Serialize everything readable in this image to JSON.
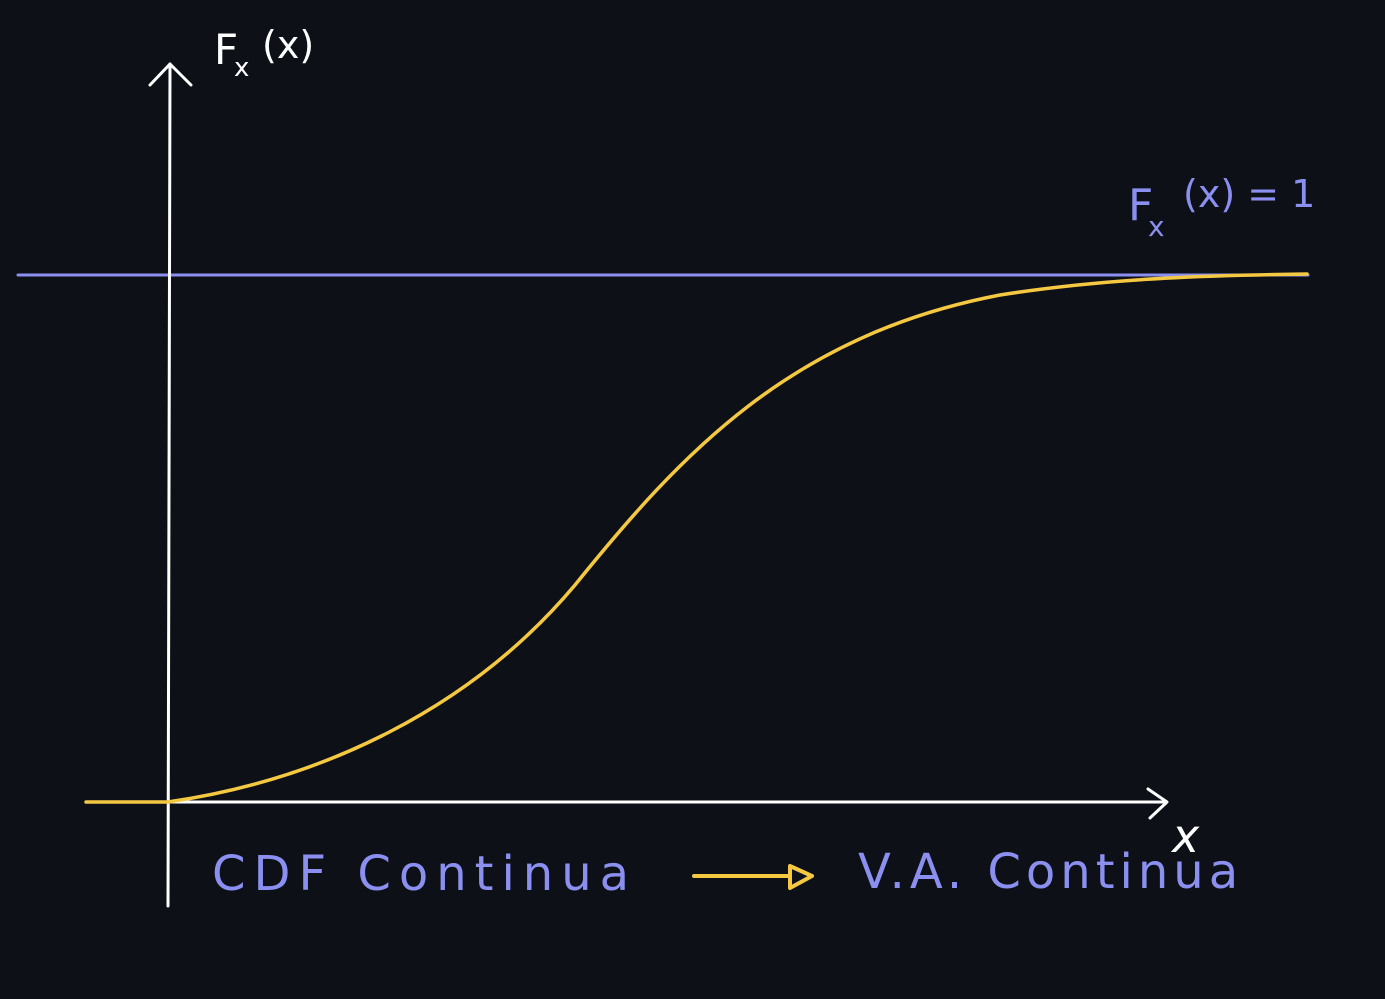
{
  "colors": {
    "background": "#0d1117",
    "axis": "#ffffff",
    "limit_line": "#8b8ff0",
    "curve": "#f5c842",
    "caption": "#8b8ff0"
  },
  "y_axis": {
    "label_main": "F",
    "label_sub": "x",
    "label_arg": "(x)"
  },
  "x_axis": {
    "label": "x"
  },
  "limit": {
    "label_main": "F",
    "label_sub": "x",
    "label_rest": "(x) = 1"
  },
  "caption": {
    "left": "CDF Continua",
    "right": "V.A. Continua"
  },
  "chart_data": {
    "type": "line",
    "title": "",
    "xlabel": "x",
    "ylabel": "Fx(x)",
    "series": [],
    "x": [
      0,
      0.1,
      0.2,
      0.3,
      0.4,
      0.5,
      0.6,
      0.7,
      0.8,
      0.9,
      1.0
    ],
    "y": [
      0,
      0.04,
      0.15,
      0.32,
      0.5,
      0.66,
      0.79,
      0.88,
      0.94,
      0.98,
      1.0
    ],
    "ylim": [
      0,
      1
    ],
    "asymptote": 1
  }
}
